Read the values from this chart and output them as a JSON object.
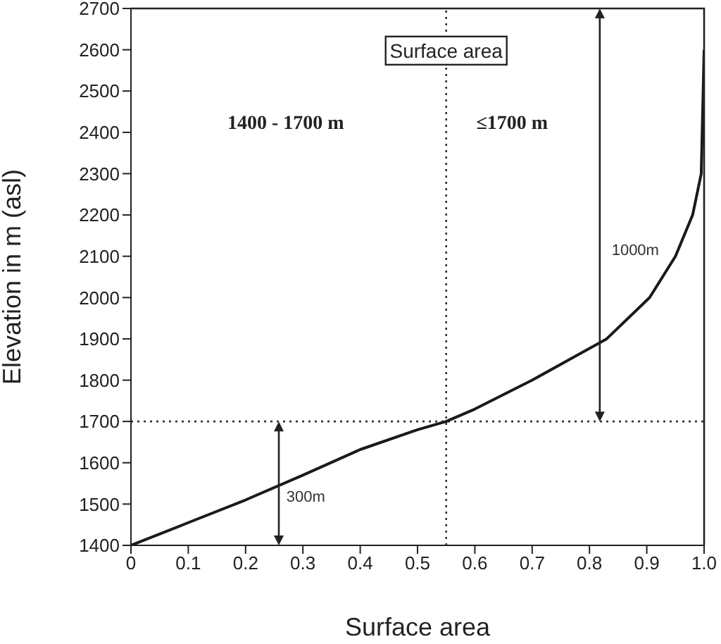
{
  "chart_data": {
    "type": "line",
    "xlabel": "Surface area",
    "ylabel": "Elevation in m (asl)",
    "x": [
      0,
      0.1,
      0.2,
      0.3,
      0.4,
      0.5,
      0.55,
      0.6,
      0.7,
      0.83,
      0.905,
      0.95,
      0.98,
      0.995,
      1.0
    ],
    "series": [
      {
        "color": "#1a1a1a",
        "values": [
          1400,
          1455,
          1510,
          1570,
          1632,
          1680,
          1700,
          1730,
          1800,
          1900,
          2000,
          2100,
          2200,
          2300,
          2600
        ]
      }
    ],
    "xlim": [
      0,
      1.0
    ],
    "ylim": [
      1400,
      2700
    ],
    "xticks": [
      0,
      0.1,
      0.2,
      0.3,
      0.4,
      0.5,
      0.6,
      0.7,
      0.8,
      0.9,
      {
        "value": 1.0,
        "label": "1.0"
      }
    ],
    "yticks": [
      1400,
      1500,
      1600,
      1700,
      1800,
      1900,
      2000,
      2100,
      2200,
      2300,
      2400,
      2500,
      2600,
      2700
    ],
    "ref_lines": [
      {
        "axis": "x",
        "value": 0.55,
        "line_style": "dotted",
        "color": "#333333"
      },
      {
        "axis": "y",
        "value": 1700,
        "line_style": "dotted",
        "color": "#333333"
      }
    ],
    "annotations": [
      "Surface area",
      "1400 - 1700 m",
      "≤1700 m",
      "1000m",
      "300m"
    ],
    "grid": false,
    "legend": false,
    "marker": "none",
    "line_style": "solid"
  }
}
